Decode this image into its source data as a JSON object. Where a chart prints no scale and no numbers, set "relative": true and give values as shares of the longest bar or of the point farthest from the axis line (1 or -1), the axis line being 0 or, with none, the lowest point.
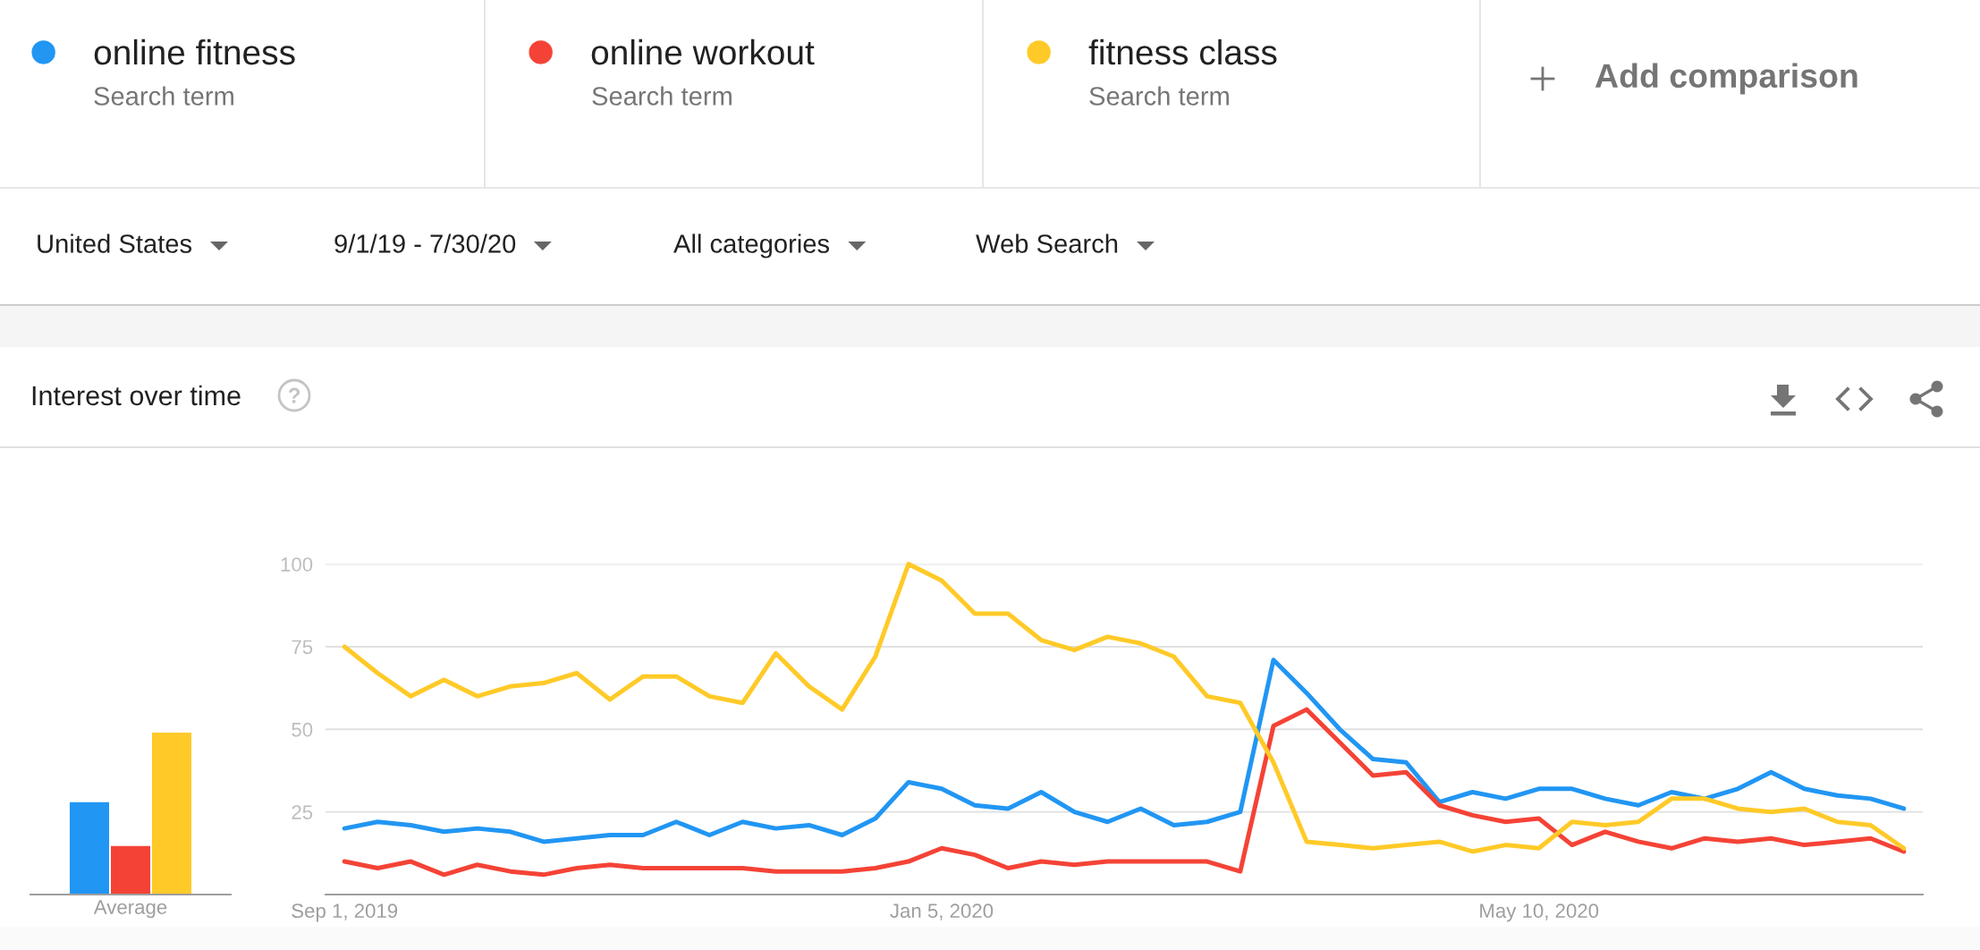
{
  "chart_data": [
    {
      "type": "other",
      "annotations": [
        "Search term",
        "Search term",
        "Search term",
        "Add comparison",
        "United States",
        "9/1/19 - 7/30/20",
        "All categories",
        "Web Search"
      ]
    },
    {
      "type": "bar",
      "relative": true,
      "categories": [
        null,
        null,
        null
      ],
      "values": [
        0.57,
        0.3,
        1
      ],
      "colors": [
        "#2196f3",
        "#f44336",
        "#ffca28"
      ],
      "xlabel": "Average"
    },
    {
      "type": "line",
      "title": "Interest over time",
      "x": [
        "2019-09-01",
        "2019-09-08",
        "2019-09-15",
        "2019-09-22",
        "2019-09-29",
        "2019-10-06",
        "2019-10-13",
        "2019-10-20",
        "2019-10-27",
        "2019-11-03",
        "2019-11-10",
        "2019-11-17",
        "2019-11-24",
        "2019-12-01",
        "2019-12-08",
        "2019-12-15",
        "2019-12-22",
        "2019-12-29",
        "2020-01-05",
        "2020-01-12",
        "2020-01-19",
        "2020-01-26",
        "2020-02-02",
        "2020-02-09",
        "2020-02-16",
        "2020-02-23",
        "2020-03-01",
        "2020-03-08",
        "2020-03-15",
        "2020-03-22",
        "2020-03-29",
        "2020-04-05",
        "2020-04-12",
        "2020-04-19",
        "2020-04-26",
        "2020-05-03",
        "2020-05-10",
        "2020-05-17",
        "2020-05-24",
        "2020-05-31",
        "2020-06-07",
        "2020-06-14",
        "2020-06-21",
        "2020-06-28",
        "2020-07-05",
        "2020-07-12",
        "2020-07-19",
        "2020-07-26"
      ],
      "series": [
        {
          "name": "online fitness",
          "color": "#2196f3",
          "values": [
            20,
            22,
            21,
            19,
            20,
            19,
            16,
            17,
            18,
            18,
            22,
            18,
            22,
            20,
            21,
            18,
            23,
            34,
            32,
            27,
            26,
            31,
            25,
            22,
            26,
            21,
            22,
            25,
            71,
            61,
            50,
            41,
            40,
            28,
            31,
            29,
            32,
            32,
            29,
            27,
            31,
            29,
            32,
            37,
            32,
            30,
            29,
            26
          ]
        },
        {
          "name": "online workout",
          "color": "#f44336",
          "values": [
            10,
            8,
            10,
            6,
            9,
            7,
            6,
            8,
            9,
            8,
            8,
            8,
            8,
            7,
            7,
            7,
            8,
            10,
            14,
            12,
            8,
            10,
            9,
            10,
            10,
            10,
            10,
            7,
            51,
            56,
            46,
            36,
            37,
            27,
            24,
            22,
            23,
            15,
            19,
            16,
            14,
            17,
            16,
            17,
            15,
            16,
            17,
            13
          ]
        },
        {
          "name": "fitness class",
          "color": "#ffca28",
          "values": [
            75,
            67,
            60,
            65,
            60,
            63,
            64,
            67,
            59,
            66,
            66,
            60,
            58,
            73,
            63,
            56,
            72,
            100,
            95,
            85,
            85,
            77,
            74,
            78,
            76,
            72,
            60,
            58,
            40,
            16,
            15,
            14,
            15,
            16,
            13,
            15,
            14,
            22,
            21,
            22,
            29,
            29,
            26,
            25,
            26,
            22,
            21,
            14
          ]
        }
      ],
      "xlim": [
        "2019-08-28",
        "2020-07-30"
      ],
      "xticks": [
        {
          "value": "2019-09-01",
          "label": "Sep 1, 2019"
        },
        {
          "value": "2020-01-05",
          "label": "Jan 5, 2020"
        },
        {
          "value": "2020-05-10",
          "label": "May 10, 2020"
        }
      ],
      "ylim": [
        0,
        100
      ],
      "yticks": [
        25,
        50,
        75,
        100
      ],
      "grid": "y",
      "legend": "top"
    }
  ]
}
